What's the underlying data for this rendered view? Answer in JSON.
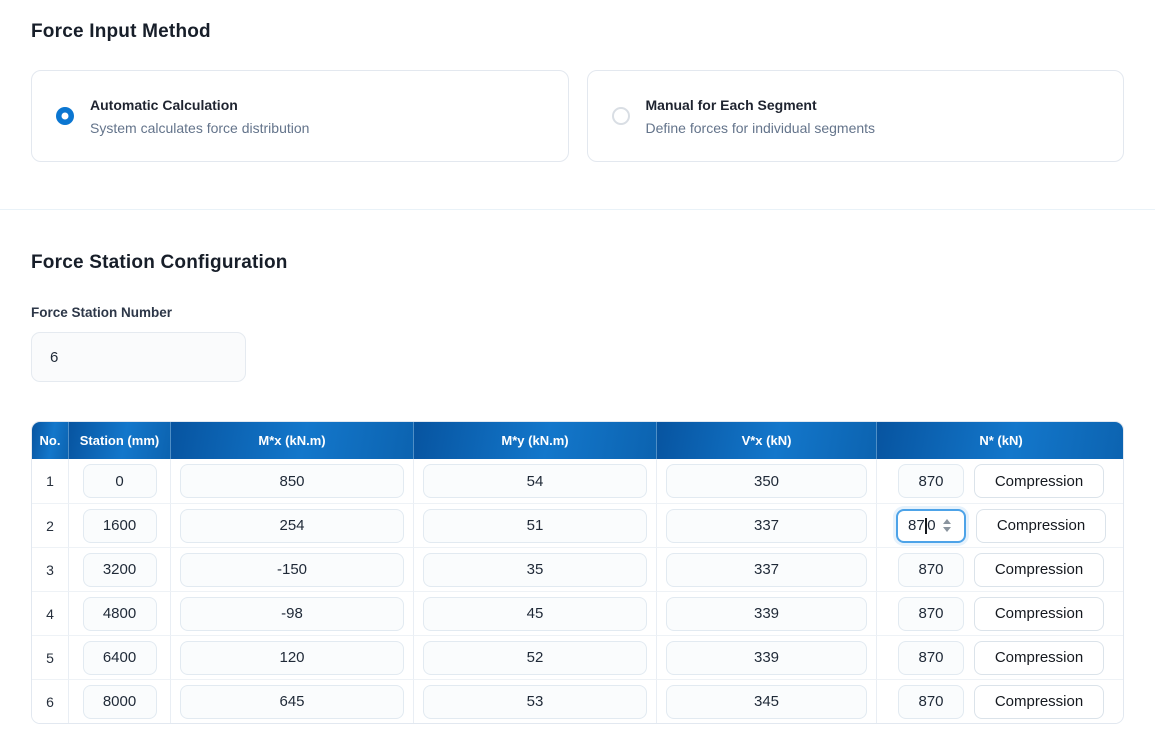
{
  "force_input": {
    "title": "Force Input Method",
    "options": [
      {
        "label": "Automatic Calculation",
        "description": "System calculates force distribution",
        "selected": true
      },
      {
        "label": "Manual for Each Segment",
        "description": "Define forces for individual segments",
        "selected": false
      }
    ]
  },
  "config": {
    "title": "Force Station Configuration",
    "station_number_label": "Force Station Number",
    "station_number_value": "6",
    "table": {
      "headers": [
        "No.",
        "Station (mm)",
        "M*x (kN.m)",
        "M*y (kN.m)",
        "V*x (kN)",
        "N* (kN)"
      ],
      "rows": [
        {
          "no": "1",
          "station": "0",
          "mx": "850",
          "my": "54",
          "vx": "350",
          "n": "870",
          "n_type": "Compression"
        },
        {
          "no": "2",
          "station": "1600",
          "mx": "254",
          "my": "51",
          "vx": "337",
          "n": "870",
          "n_before_caret": "87",
          "n_after_caret": "0",
          "n_type": "Compression"
        },
        {
          "no": "3",
          "station": "3200",
          "mx": "-150",
          "my": "35",
          "vx": "337",
          "n": "870",
          "n_type": "Compression"
        },
        {
          "no": "4",
          "station": "4800",
          "mx": "-98",
          "my": "45",
          "vx": "339",
          "n": "870",
          "n_type": "Compression"
        },
        {
          "no": "5",
          "station": "6400",
          "mx": "120",
          "my": "52",
          "vx": "339",
          "n": "870",
          "n_type": "Compression"
        },
        {
          "no": "6",
          "station": "8000",
          "mx": "645",
          "my": "53",
          "vx": "345",
          "n": "870",
          "n_type": "Compression"
        }
      ]
    }
  },
  "colors": {
    "header_blue_dark": "#0754a0",
    "header_blue_light": "#1377cb",
    "radio_selected": "#0b76d1",
    "focus_ring": "#4da3e8"
  }
}
